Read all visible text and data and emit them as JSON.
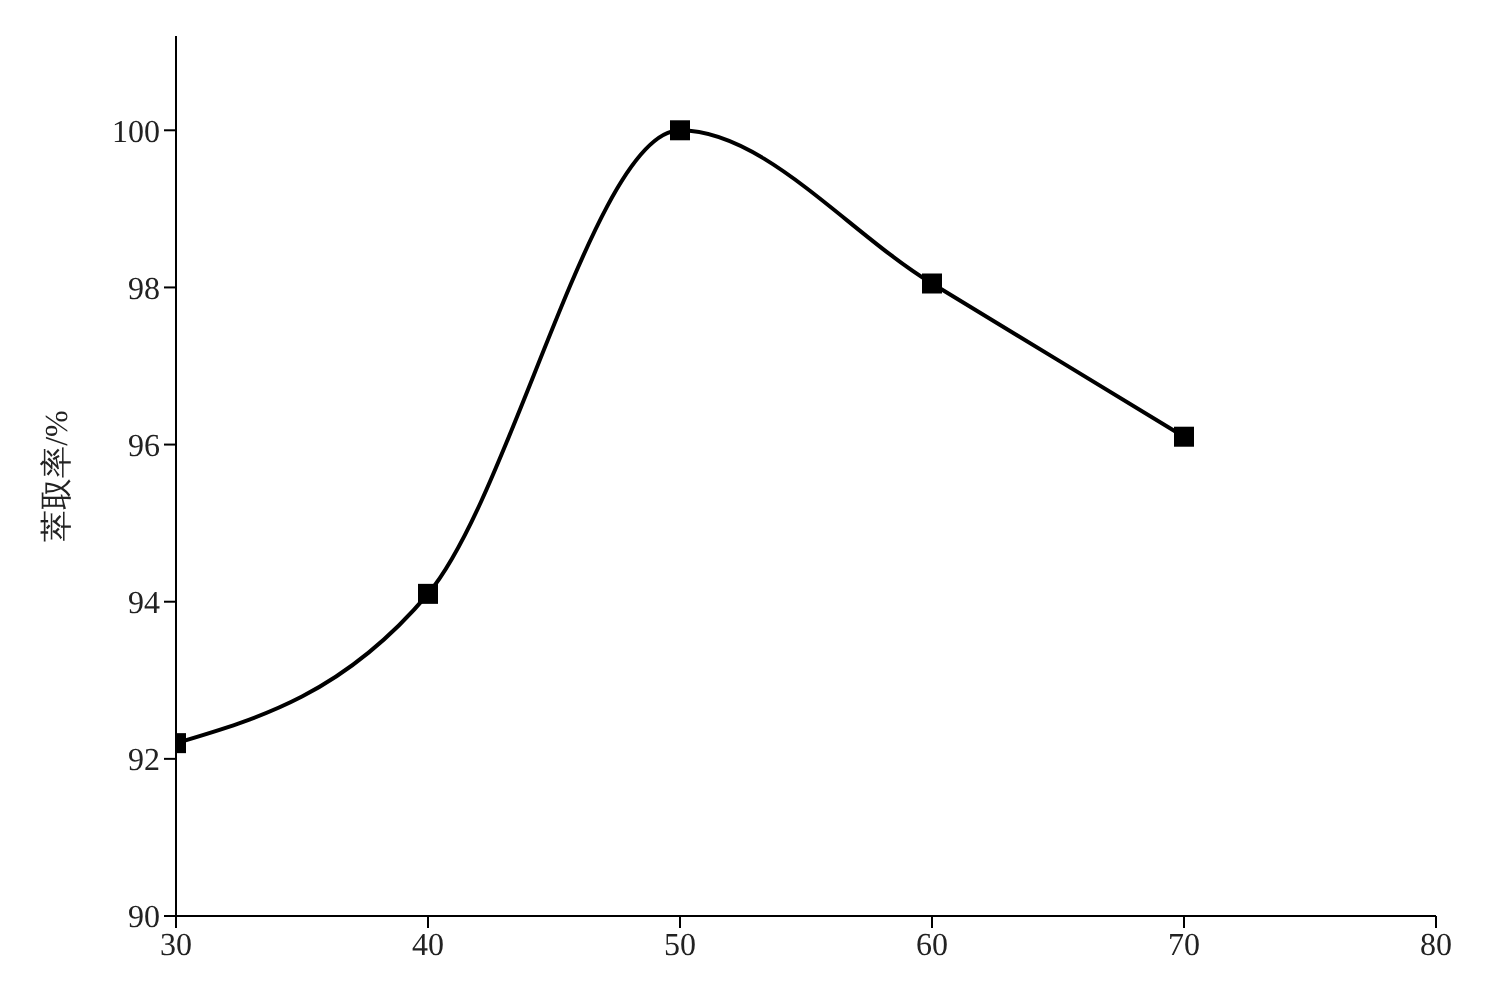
{
  "chart_data": {
    "type": "line",
    "ylabel": "萃取率/%",
    "x": [
      30,
      40,
      50,
      60,
      70
    ],
    "series": [
      {
        "color": "#000000",
        "values": [
          92.2,
          94.1,
          100,
          98.05,
          96.1
        ]
      }
    ],
    "xlim": [
      30,
      80
    ],
    "xticks": [
      30,
      40,
      50,
      60,
      70,
      80
    ],
    "ylim": [
      90,
      101.2
    ],
    "yticks": [
      90,
      92,
      94,
      96,
      98,
      100
    ],
    "grid": false,
    "legend": false,
    "marker": "square",
    "line_style": "solid"
  }
}
